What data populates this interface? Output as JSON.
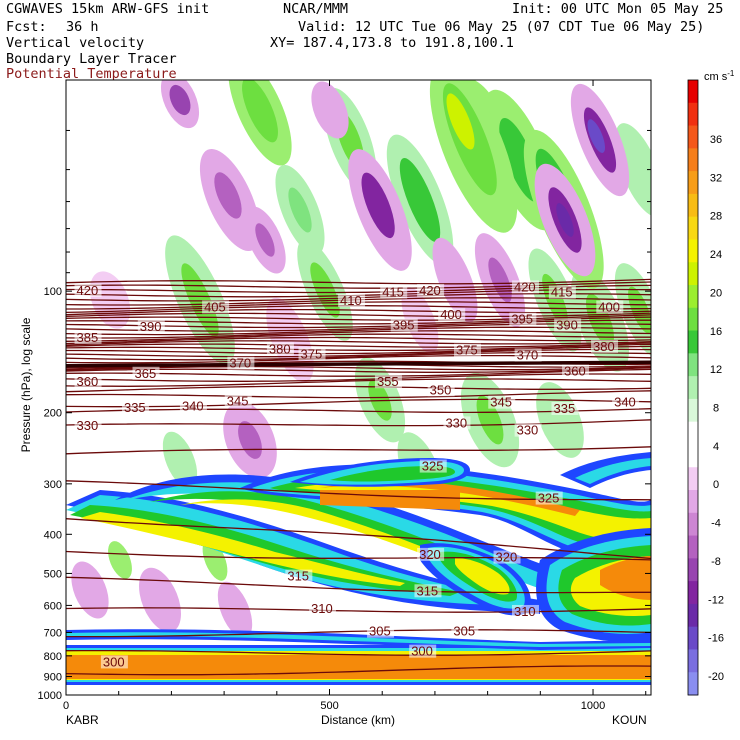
{
  "header": {
    "model": "CGWAVES 15km ARW-GFS init",
    "org": "NCAR/MMM",
    "init": "Init: 00 UTC Mon 05 May 25",
    "fcst_label": "Fcst:",
    "fcst_value": "36 h",
    "valid": "Valid: 12 UTC Tue 06 May 25 (07 CDT Tue 06 May 25)",
    "field1": "Vertical velocity",
    "field2": "Boundary Layer Tracer",
    "field3": "Potential Temperature",
    "xy": "XY= 187.4,173.8 to 191.8,100.1"
  },
  "colors": {
    "theta": "#6b0a0a",
    "tracer_outer": "#1e46ff",
    "tracer_cyan": "#2ad9e6",
    "tracer_green": "#1fc82c",
    "tracer_yellow": "#f4f200",
    "tracer_orange": "#f58a0a"
  },
  "chart_data": {
    "type": "heatmap",
    "xlabel": "Distance (km)",
    "ylabel": "Pressure (hPa), log scale",
    "x_ticks": [
      "0",
      "500",
      "1000"
    ],
    "x_endpoints": [
      "KABR",
      "KOUN"
    ],
    "y_ticks": [
      "100",
      "200",
      "300",
      "400",
      "500",
      "600",
      "700",
      "800",
      "900",
      "1000"
    ],
    "xlim": [
      0,
      1110
    ],
    "ylim": [
      1000,
      30
    ],
    "colorbar": {
      "unit": "cm s",
      "unit_exp": "-1",
      "labels": [
        "36",
        "32",
        "28",
        "24",
        "20",
        "16",
        "12",
        "8",
        "4",
        "0",
        "-4",
        "-8",
        "-12",
        "-16",
        "-20"
      ],
      "colors": [
        "#e60000",
        "#f03010",
        "#f4581a",
        "#f57e1a",
        "#f79d18",
        "#f8bc14",
        "#f8d812",
        "#f4f200",
        "#cdf200",
        "#9bee30",
        "#6ddf40",
        "#38c838",
        "#7fe37f",
        "#b0f0b0",
        "#d9f8d9",
        "#ffffff",
        "#ffffff",
        "#f3cdf3",
        "#e2a8e6",
        "#cd86d3",
        "#b461c0",
        "#9844b0",
        "#8225a0",
        "#6a2aa8",
        "#6a4ac8",
        "#7a6ee0",
        "#8a8ef0"
      ]
    },
    "theta_labels": [
      {
        "text": "420",
        "x": 20,
        "p": 101
      },
      {
        "text": "420",
        "x": 670,
        "p": 101
      },
      {
        "text": "420",
        "x": 850,
        "p": 99
      },
      {
        "text": "415",
        "x": 600,
        "p": 102
      },
      {
        "text": "415",
        "x": 920,
        "p": 102
      },
      {
        "text": "410",
        "x": 520,
        "p": 107
      },
      {
        "text": "405",
        "x": 262,
        "p": 111
      },
      {
        "text": "400",
        "x": 710,
        "p": 116
      },
      {
        "text": "400",
        "x": 1010,
        "p": 111
      },
      {
        "text": "395",
        "x": 620,
        "p": 123
      },
      {
        "text": "395",
        "x": 845,
        "p": 119
      },
      {
        "text": "390",
        "x": 140,
        "p": 124
      },
      {
        "text": "390",
        "x": 930,
        "p": 123
      },
      {
        "text": "385",
        "x": 20,
        "p": 132
      },
      {
        "text": "380",
        "x": 385,
        "p": 141
      },
      {
        "text": "380",
        "x": 1000,
        "p": 139
      },
      {
        "text": "375",
        "x": 445,
        "p": 145
      },
      {
        "text": "375",
        "x": 740,
        "p": 142
      },
      {
        "text": "370",
        "x": 310,
        "p": 153
      },
      {
        "text": "370",
        "x": 855,
        "p": 146
      },
      {
        "text": "365",
        "x": 130,
        "p": 162
      },
      {
        "text": "360",
        "x": 20,
        "p": 170
      },
      {
        "text": "360",
        "x": 945,
        "p": 160
      },
      {
        "text": "355",
        "x": 590,
        "p": 170
      },
      {
        "text": "350",
        "x": 690,
        "p": 178
      },
      {
        "text": "345",
        "x": 305,
        "p": 190
      },
      {
        "text": "345",
        "x": 805,
        "p": 191
      },
      {
        "text": "340",
        "x": 220,
        "p": 195
      },
      {
        "text": "340",
        "x": 1040,
        "p": 191
      },
      {
        "text": "335",
        "x": 110,
        "p": 197
      },
      {
        "text": "335",
        "x": 925,
        "p": 198
      },
      {
        "text": "330",
        "x": 20,
        "p": 218
      },
      {
        "text": "330",
        "x": 720,
        "p": 215
      },
      {
        "text": "330",
        "x": 855,
        "p": 224
      },
      {
        "text": "325",
        "x": 675,
        "p": 275
      },
      {
        "text": "325",
        "x": 895,
        "p": 330
      },
      {
        "text": "320",
        "x": 670,
        "p": 455
      },
      {
        "text": "320",
        "x": 815,
        "p": 462
      },
      {
        "text": "315",
        "x": 420,
        "p": 515
      },
      {
        "text": "315",
        "x": 665,
        "p": 560
      },
      {
        "text": "310",
        "x": 465,
        "p": 620
      },
      {
        "text": "310",
        "x": 850,
        "p": 630
      },
      {
        "text": "305",
        "x": 575,
        "p": 705
      },
      {
        "text": "305",
        "x": 735,
        "p": 705
      },
      {
        "text": "300",
        "x": 655,
        "p": 790
      },
      {
        "text": "300",
        "x": 70,
        "p": 840
      }
    ]
  }
}
